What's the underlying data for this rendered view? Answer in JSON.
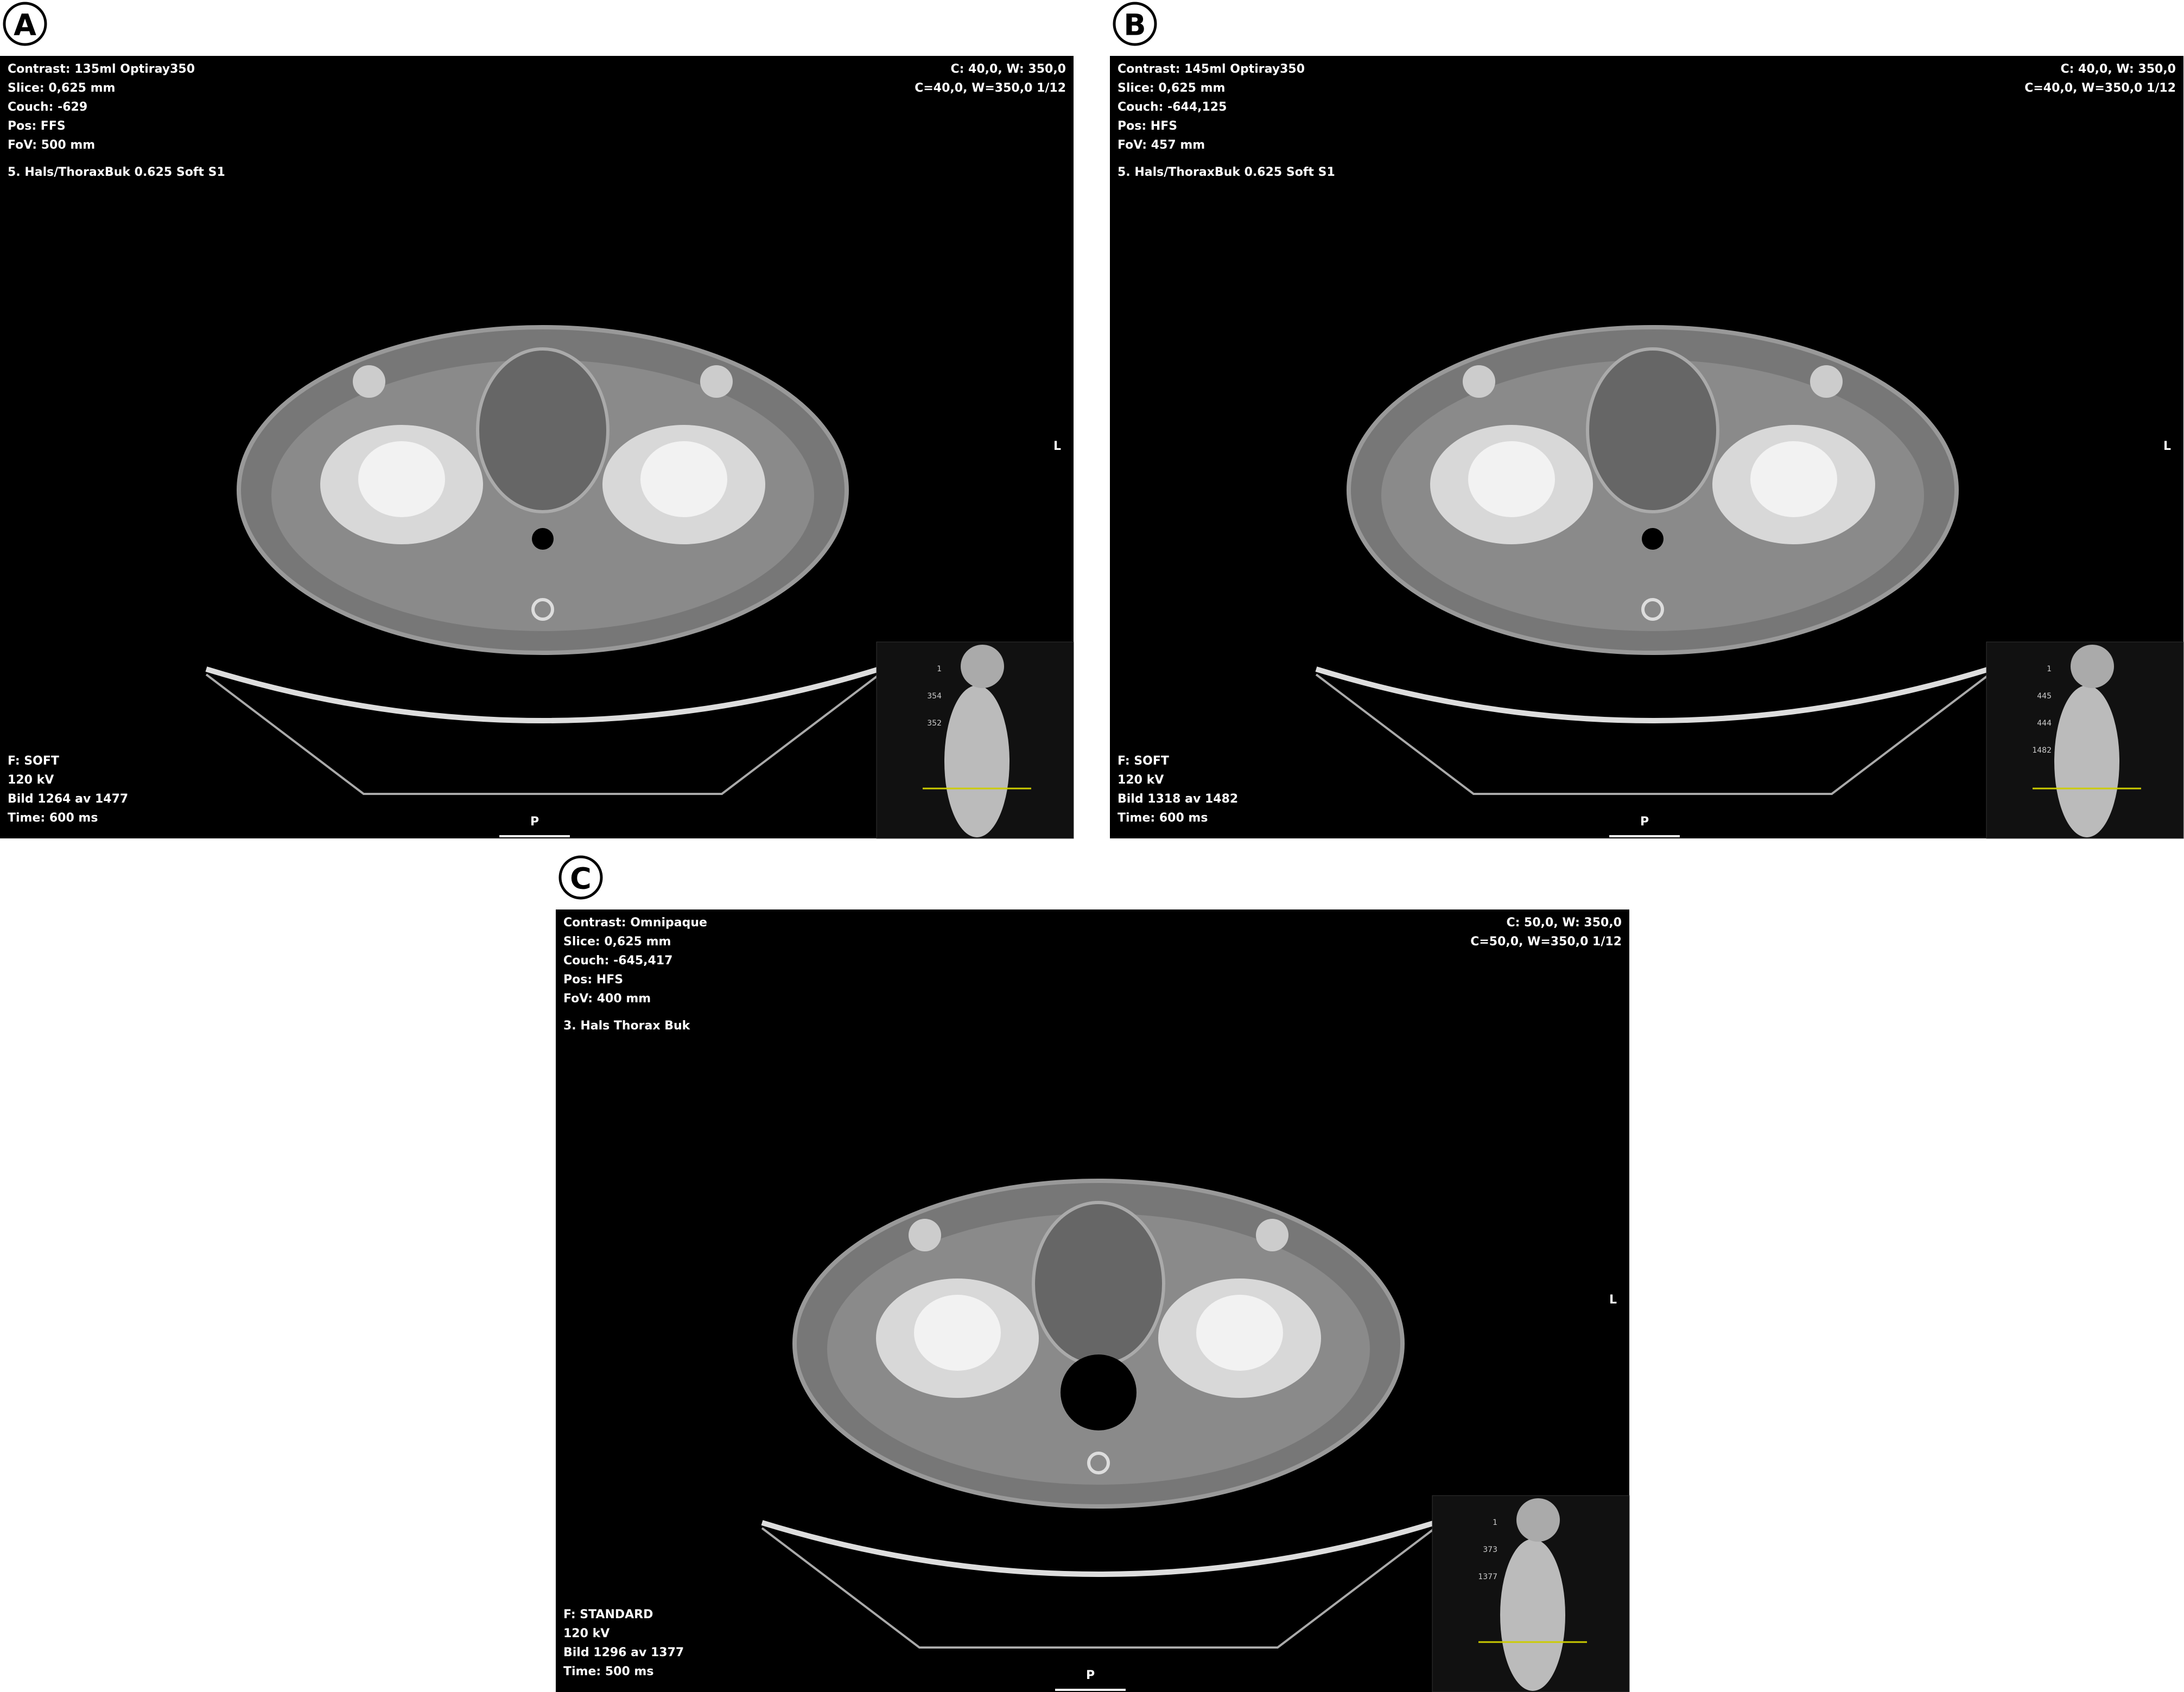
{
  "panels": [
    {
      "label": "A",
      "top_left": [
        "Contrast: 135ml Optiray350",
        "Slice: 0,625 mm",
        "Couch: -629",
        "Pos: FFS",
        "FoV: 500 mm"
      ],
      "top_right": [
        "C: 40,0, W: 350,0",
        "C=40,0, W=350,0 1/12"
      ],
      "series": "5. Hals/ThoraxBuk 0.625 Soft S1",
      "bottom_left": [
        "F: SOFT",
        "120 kV",
        "Bild 1264 av 1477",
        "Time: 600 ms"
      ],
      "posterior": "P",
      "side": "L",
      "scout": [
        "1",
        "354",
        "352"
      ]
    },
    {
      "label": "B",
      "top_left": [
        "Contrast: 145ml Optiray350",
        "Slice: 0,625 mm",
        "Couch: -644,125",
        "Pos: HFS",
        "FoV: 457 mm"
      ],
      "top_right": [
        "C: 40,0, W: 350,0",
        "C=40,0, W=350,0 1/12"
      ],
      "series": "5. Hals/ThoraxBuk 0.625 Soft S1",
      "bottom_left": [
        "F: SOFT",
        "120 kV",
        "Bild 1318 av 1482",
        "Time: 600 ms"
      ],
      "posterior": "P",
      "side": "L",
      "scout": [
        "1",
        "445",
        "444",
        "1482"
      ]
    },
    {
      "label": "C",
      "top_left": [
        "Contrast: Omnipaque",
        "Slice: 0,625 mm",
        "Couch: -645,417",
        "Pos: HFS",
        "FoV: 400 mm"
      ],
      "top_right": [
        "C: 50,0, W: 350,0",
        "C=50,0, W=350,0 1/12"
      ],
      "series": "3. Hals Thorax Buk",
      "bottom_left": [
        "F: STANDARD",
        "120 kV",
        "Bild 1296 av 1377",
        "Time: 500 ms"
      ],
      "posterior": "P",
      "side": "L",
      "scout": [
        "1",
        "373",
        "1377"
      ]
    }
  ]
}
